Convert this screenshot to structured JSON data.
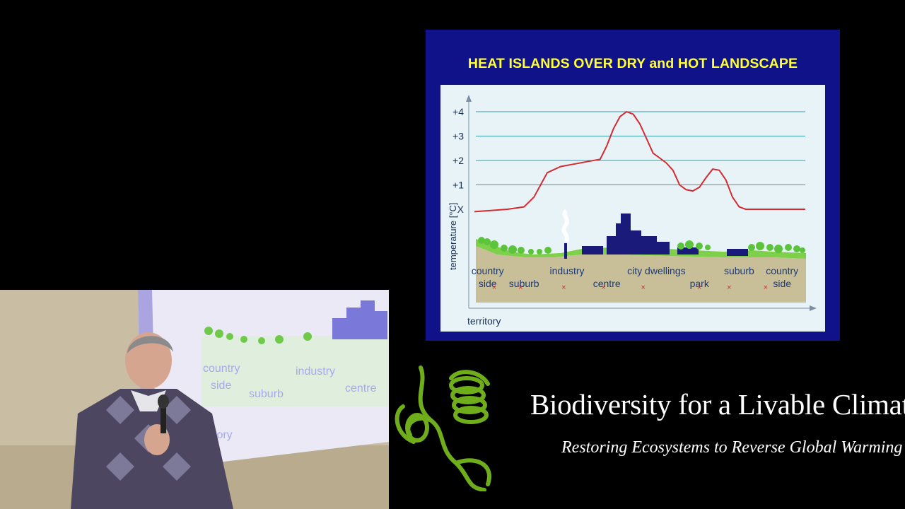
{
  "slide": {
    "title": "HEAT ISLANDS OVER DRY and HOT LANDSCAPE"
  },
  "chart_data": {
    "type": "line",
    "title": "HEAT ISLANDS OVER DRY and HOT LANDSCAPE",
    "ylabel": "temperature [°C]",
    "xlabel": "territory",
    "ytick_labels": [
      "X",
      "+1",
      "+2",
      "+3",
      "+4"
    ],
    "y_values_for_ticks": [
      0,
      1,
      2,
      3,
      4
    ],
    "ylim": [
      0,
      4
    ],
    "grid": true,
    "series": [
      {
        "x": [
          0,
          5,
          10,
          15,
          18,
          22,
          26,
          30,
          34,
          38,
          40,
          42,
          44,
          46,
          48,
          50,
          52,
          54,
          56,
          58,
          60,
          62,
          64,
          66,
          68,
          70,
          72,
          74,
          76,
          78,
          80,
          82,
          84,
          86,
          88,
          90,
          94,
          100
        ],
        "values": [
          -0.1,
          -0.05,
          0,
          0.1,
          0.5,
          1.5,
          1.75,
          1.85,
          1.95,
          2.05,
          2.6,
          3.3,
          3.8,
          4.0,
          3.9,
          3.5,
          2.9,
          2.3,
          2.1,
          1.9,
          1.6,
          1.0,
          0.8,
          0.75,
          0.9,
          1.3,
          1.65,
          1.6,
          1.2,
          0.5,
          0.1,
          0.0,
          0.0,
          0.0,
          0.0,
          0.0,
          0.0,
          0.0
        ],
        "color": "#d42a30"
      }
    ],
    "zone_labels": [
      {
        "label": "country\nside",
        "x": 4
      },
      {
        "label": "suburb",
        "x": 15
      },
      {
        "label": "industry",
        "x": 28
      },
      {
        "label": "centre",
        "x": 40
      },
      {
        "label": "city dwellings",
        "x": 55
      },
      {
        "label": "park",
        "x": 68
      },
      {
        "label": "suburb",
        "x": 80
      },
      {
        "label": "country\nside",
        "x": 93
      }
    ]
  },
  "branding": {
    "title": "Biodiversity for a Livable Climate",
    "tagline": "Restoring Ecosystems to Reverse Global Warming",
    "logo_color": "#6fae1a"
  },
  "video": {
    "description_colors": {
      "wall": "#c9bea4",
      "screen": "#ece9f7"
    }
  }
}
